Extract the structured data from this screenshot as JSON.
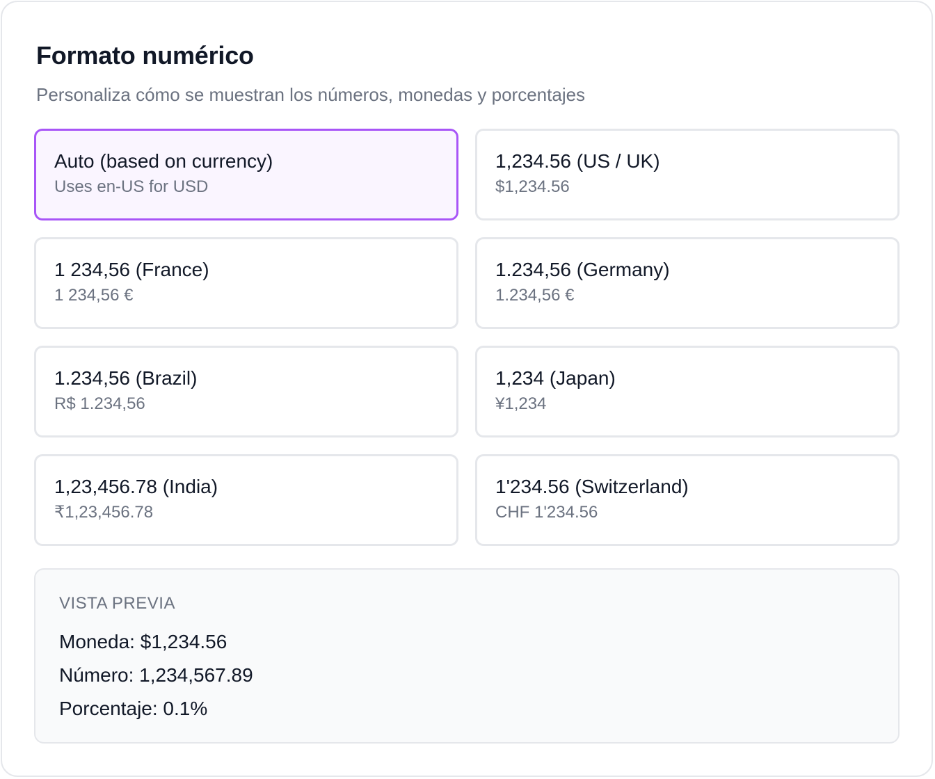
{
  "header": {
    "title": "Formato numérico",
    "subtitle": "Personaliza cómo se muestran los números, monedas y porcentajes"
  },
  "options": [
    {
      "label": "Auto (based on currency)",
      "example": "Uses en-US for USD",
      "selected": true
    },
    {
      "label": "1,234.56 (US / UK)",
      "example": "$1,234.56",
      "selected": false
    },
    {
      "label": "1 234,56 (France)",
      "example": "1 234,56 €",
      "selected": false
    },
    {
      "label": "1.234,56 (Germany)",
      "example": "1.234,56 €",
      "selected": false
    },
    {
      "label": "1.234,56 (Brazil)",
      "example": "R$ 1.234,56",
      "selected": false
    },
    {
      "label": "1,234 (Japan)",
      "example": "¥1,234",
      "selected": false
    },
    {
      "label": "1,23,456.78 (India)",
      "example": "₹1,23,456.78",
      "selected": false
    },
    {
      "label": "1'234.56 (Switzerland)",
      "example": "CHF 1'234.56",
      "selected": false
    }
  ],
  "preview": {
    "heading": "VISTA PREVIA",
    "currency_label": "Moneda:",
    "currency_value": "$1,234.56",
    "number_label": "Número:",
    "number_value": "1,234,567.89",
    "percent_label": "Porcentaje:",
    "percent_value": "0.1%"
  },
  "colors": {
    "accent": "#a855f7",
    "selected_bg": "#faf5ff",
    "border": "#e5e7eb",
    "muted_text": "#6b7280",
    "text": "#111827",
    "preview_bg": "#f9fafb"
  }
}
